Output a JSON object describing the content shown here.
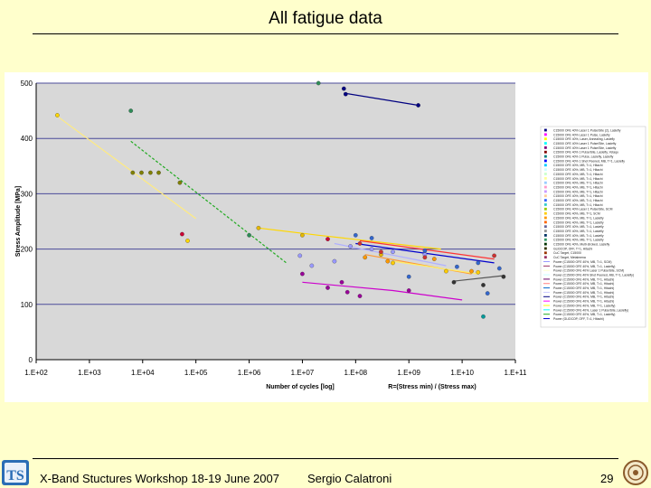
{
  "slide": {
    "title": "All fatigue data",
    "footer_left": "X-Band Stuctures Workshop 18-19 June 2007",
    "footer_center": "Sergio Calatroni",
    "page_number": "29"
  },
  "chart_data": {
    "type": "scatter",
    "title": "",
    "xlabel": "Number of cycles [log]",
    "xlabel2": "R=(Stress min) / (Stress max)",
    "ylabel": "Stress Amplitude [MPa]",
    "xscale": "log",
    "xlim": [
      100,
      100000000000
    ],
    "ylim": [
      0,
      500
    ],
    "x_ticks": [
      "1.E+02",
      "1.E+03",
      "1.E+04",
      "1.E+05",
      "1.E+06",
      "1.E+07",
      "1.E+08",
      "1.E+09",
      "1.E+10",
      "1.E+11"
    ],
    "y_ticks": [
      "0",
      "100",
      "200",
      "300",
      "400",
      "500"
    ],
    "grid": "horizontal",
    "legend_placement": "right",
    "series": [
      {
        "color": "#000080",
        "points": [
          [
            60000000,
            490
          ],
          [
            65000000,
            480
          ],
          [
            1500000000,
            460
          ]
        ],
        "trend": [
          [
            60000000,
            482
          ],
          [
            1500000000,
            460
          ]
        ],
        "trend_color": "#000080"
      },
      {
        "color": "#ffd700",
        "points": [
          [
            250,
            442
          ],
          [
            70000,
            215
          ]
        ],
        "trend": [
          [
            250,
            440
          ],
          [
            100000,
            255
          ]
        ],
        "trend_color": "#ffeb80"
      },
      {
        "color": "#2e8b57",
        "points": [
          [
            6000,
            450
          ],
          [
            1000000,
            225
          ],
          [
            20000000,
            500
          ]
        ],
        "trend": [
          [
            6000,
            395
          ],
          [
            5000000,
            175
          ]
        ],
        "trend_color": "#22aa22"
      },
      {
        "color": "#808000",
        "points": [
          [
            6500,
            338
          ],
          [
            9500,
            338
          ],
          [
            14000,
            338
          ],
          [
            20000,
            338
          ],
          [
            50000,
            320
          ]
        ]
      },
      {
        "color": "#cc0033",
        "points": [
          [
            55000,
            227
          ],
          [
            30000000,
            218
          ]
        ]
      },
      {
        "color": "#e6b800",
        "points": [
          [
            1500000,
            238
          ],
          [
            10000000,
            225
          ],
          [
            300000000,
            190
          ]
        ],
        "trend": [
          [
            1500000,
            238
          ],
          [
            20000000,
            225
          ],
          [
            4000000000,
            200
          ]
        ],
        "trend_color": "#ffd700"
      },
      {
        "color": "#990099",
        "points": [
          [
            10000000,
            155
          ],
          [
            30000000,
            130
          ],
          [
            55000000,
            140
          ],
          [
            70000000,
            122
          ],
          [
            120000000,
            115
          ],
          [
            1000000000,
            125
          ]
        ],
        "trend": [
          [
            10000000,
            140
          ],
          [
            500000000,
            125
          ],
          [
            10000000000,
            108
          ]
        ],
        "trend_color": "#cc00cc"
      },
      {
        "color": "#9999ff",
        "points": [
          [
            9000000,
            188
          ],
          [
            15000000,
            170
          ],
          [
            40000000,
            178
          ],
          [
            80000000,
            205
          ],
          [
            200000000,
            200
          ],
          [
            500000000,
            195
          ],
          [
            2000000000,
            190
          ]
        ],
        "trend": [
          [
            40000000,
            210
          ],
          [
            5000000000,
            170
          ]
        ],
        "trend_color": "#b0b0ff"
      },
      {
        "color": "#3366cc",
        "points": [
          [
            100000000,
            225
          ],
          [
            200000000,
            220
          ],
          [
            1000000000,
            150
          ],
          [
            2000000000,
            197
          ],
          [
            8000000000,
            168
          ],
          [
            20000000000,
            175
          ],
          [
            30000000000,
            120
          ],
          [
            50000000000,
            165
          ]
        ],
        "trend": [
          [
            100000000,
            210
          ],
          [
            40000000000,
            175
          ]
        ],
        "trend_color": "#0000cc"
      },
      {
        "color": "#cc3333",
        "points": [
          [
            120000000,
            210
          ],
          [
            300000000,
            195
          ],
          [
            2000000000,
            185
          ],
          [
            40000000000,
            188
          ]
        ],
        "trend": [
          [
            120000000,
            215
          ],
          [
            40000000000,
            182
          ]
        ],
        "trend_color": "#ff3333"
      },
      {
        "color": "#ff9900",
        "points": [
          [
            150000000,
            185
          ],
          [
            400000000,
            178
          ],
          [
            3000000000,
            182
          ],
          [
            15000000000,
            160
          ]
        ],
        "trend": [
          [
            150000000,
            190
          ],
          [
            15000000000,
            155
          ]
        ],
        "trend_color": "#ff9933"
      },
      {
        "color": "#ffcc00",
        "points": [
          [
            500000000,
            175
          ],
          [
            5000000000,
            160
          ],
          [
            20000000000,
            158
          ]
        ],
        "trend": [
          [
            500000000,
            178
          ],
          [
            20000000000,
            155
          ]
        ],
        "trend_color": "#ffee66"
      },
      {
        "color": "#333333",
        "points": [
          [
            7000000000,
            140
          ],
          [
            25000000000,
            135
          ],
          [
            60000000000,
            150
          ]
        ],
        "trend": [
          [
            7000000000,
            142
          ],
          [
            60000000000,
            152
          ]
        ],
        "trend_color": "#555555"
      },
      {
        "color": "#009999",
        "points": [
          [
            25000000000,
            78
          ]
        ]
      }
    ],
    "legend": [
      "C15000 OFE 40% Laser 1 Pulse/Site (2), Lasiefly",
      "C15000 OFE 40% Laser 1 Pulse, Lasiefly",
      "C15000 OFE 40%, Laser, Annealing, Lasiefly",
      "C15000 OFE 40% Laser 1 Pulse/Site, Lasiefly",
      "C15000 OFE 40% Laser 1 Pulse/Site, Lasiefly",
      "C15000 OFE 40% 1 Pulse/Site, Lasiefly, Yetaqu",
      "C15000 OFE 40% 1 Pulse, Lasiefly, Lasiefly",
      "C15000 OFE 40% 1 Shot Peened, MB, T=1, Lasiefly",
      "C15000 OFE 40%, MB, T=1, Hitachi",
      "C15000 OFE 40%, MB, T=1, Hitachi",
      "C15000 OFE 40%, MB, T=1, Hitachi",
      "C15000 OFE 40%, MB, T=1, Hitachi",
      "C15000 OFE 40%, MB, T=1, Hitachi",
      "C15000 OFE 40%, MB, T=1, Hitachi",
      "C15000 OFE 40%, MB, T=1, Hitachi",
      "C15000 OFE 40%, MB, T=1, Hitachi",
      "C15000 OFE 40%, MB, T=1, Hitachi",
      "C15000 OFE 40%, MB, T=1, Hitachi",
      "C15000 OFE 40% Laser 1 Pulse/Site, SCM",
      "C15000 OFE 40%, MB, T=1, SCM",
      "C15000 OFE 40%, MB, T=1, Lasiefly",
      "C15000 OFE 40%, MB, T=1, Lasiefly",
      "C15000 OFE 40%, MB, T=1, Lasiefly",
      "C15000 OFE 40%, MB, T=1, Lasiefly",
      "C15000 OFE 40%, MB, T=1, Lasiefly",
      "C15000 OFE 40%, MB, T=1, Lasiefly",
      "C15000 OFE 40%, Multi-stroked, Lasiefly",
      "GLIDCOP, OFF, T=1, Hitachi",
      "CuC Target, C15000",
      "CuC Target, Metalmena",
      "Power (C15000 OFE 40%, MB, T=1, SCM)",
      "Power (C15000 OFE 40%, MB, T=1, Lasiefly)",
      "Power (C15000 OFE 40% Laser 1 Pulse/Site, SCM)",
      "Power (C15000 OFE 40% Shot Peened, MB, T=1, Lasiefly)",
      "Power (C15000 OFE 40%, MB, T=1, Hitachi)",
      "Power (C15000 OFE 40%, MB, T=1, Hitachi)",
      "Power (C15000 OFE 40%, MB, T=1, Hitachi)",
      "Power (C15000 OFE 40%, MB, T=1, Hitachi)",
      "Power (C15000 OFE 40%, MB, T=1, Hitachi)",
      "Power (C15000 OFE 40%, MB, T=1, Hitachi)",
      "Power (C15000 OFE 40%, MB, T=1, Lasiefly)",
      "Power (C15000 OFE 40%, Laser 1 Pulse/Site, Lasiefly)",
      "Power (C15000 OFE 40%, MB, T=1, Lasiefly)",
      "Power (GLIDCOP, OFF, T=1, Hitachi)"
    ],
    "legend_marker_colors": [
      "#000080",
      "#ff00ff",
      "#ffff00",
      "#00ffff",
      "#800080",
      "#800000",
      "#008080",
      "#0000ff",
      "#00ccff",
      "#ccffff",
      "#ccffcc",
      "#ffff99",
      "#99ccff",
      "#ff99cc",
      "#cc99ff",
      "#ffcc99",
      "#3366ff",
      "#33cccc",
      "#99cc00",
      "#ffcc00",
      "#ff9900",
      "#ff6600",
      "#666699",
      "#969696",
      "#003366",
      "#339966",
      "#003300",
      "#333300",
      "#993300",
      "#993366"
    ],
    "legend_line_colors": [
      "#9999ff",
      "#993366",
      "#ffffcc",
      "#ccffff",
      "#660066",
      "#ff8080",
      "#0066cc",
      "#ccccff",
      "#000080",
      "#ff00ff",
      "#ffff00",
      "#00ffff",
      "#22aa22",
      "#0000cc"
    ]
  }
}
